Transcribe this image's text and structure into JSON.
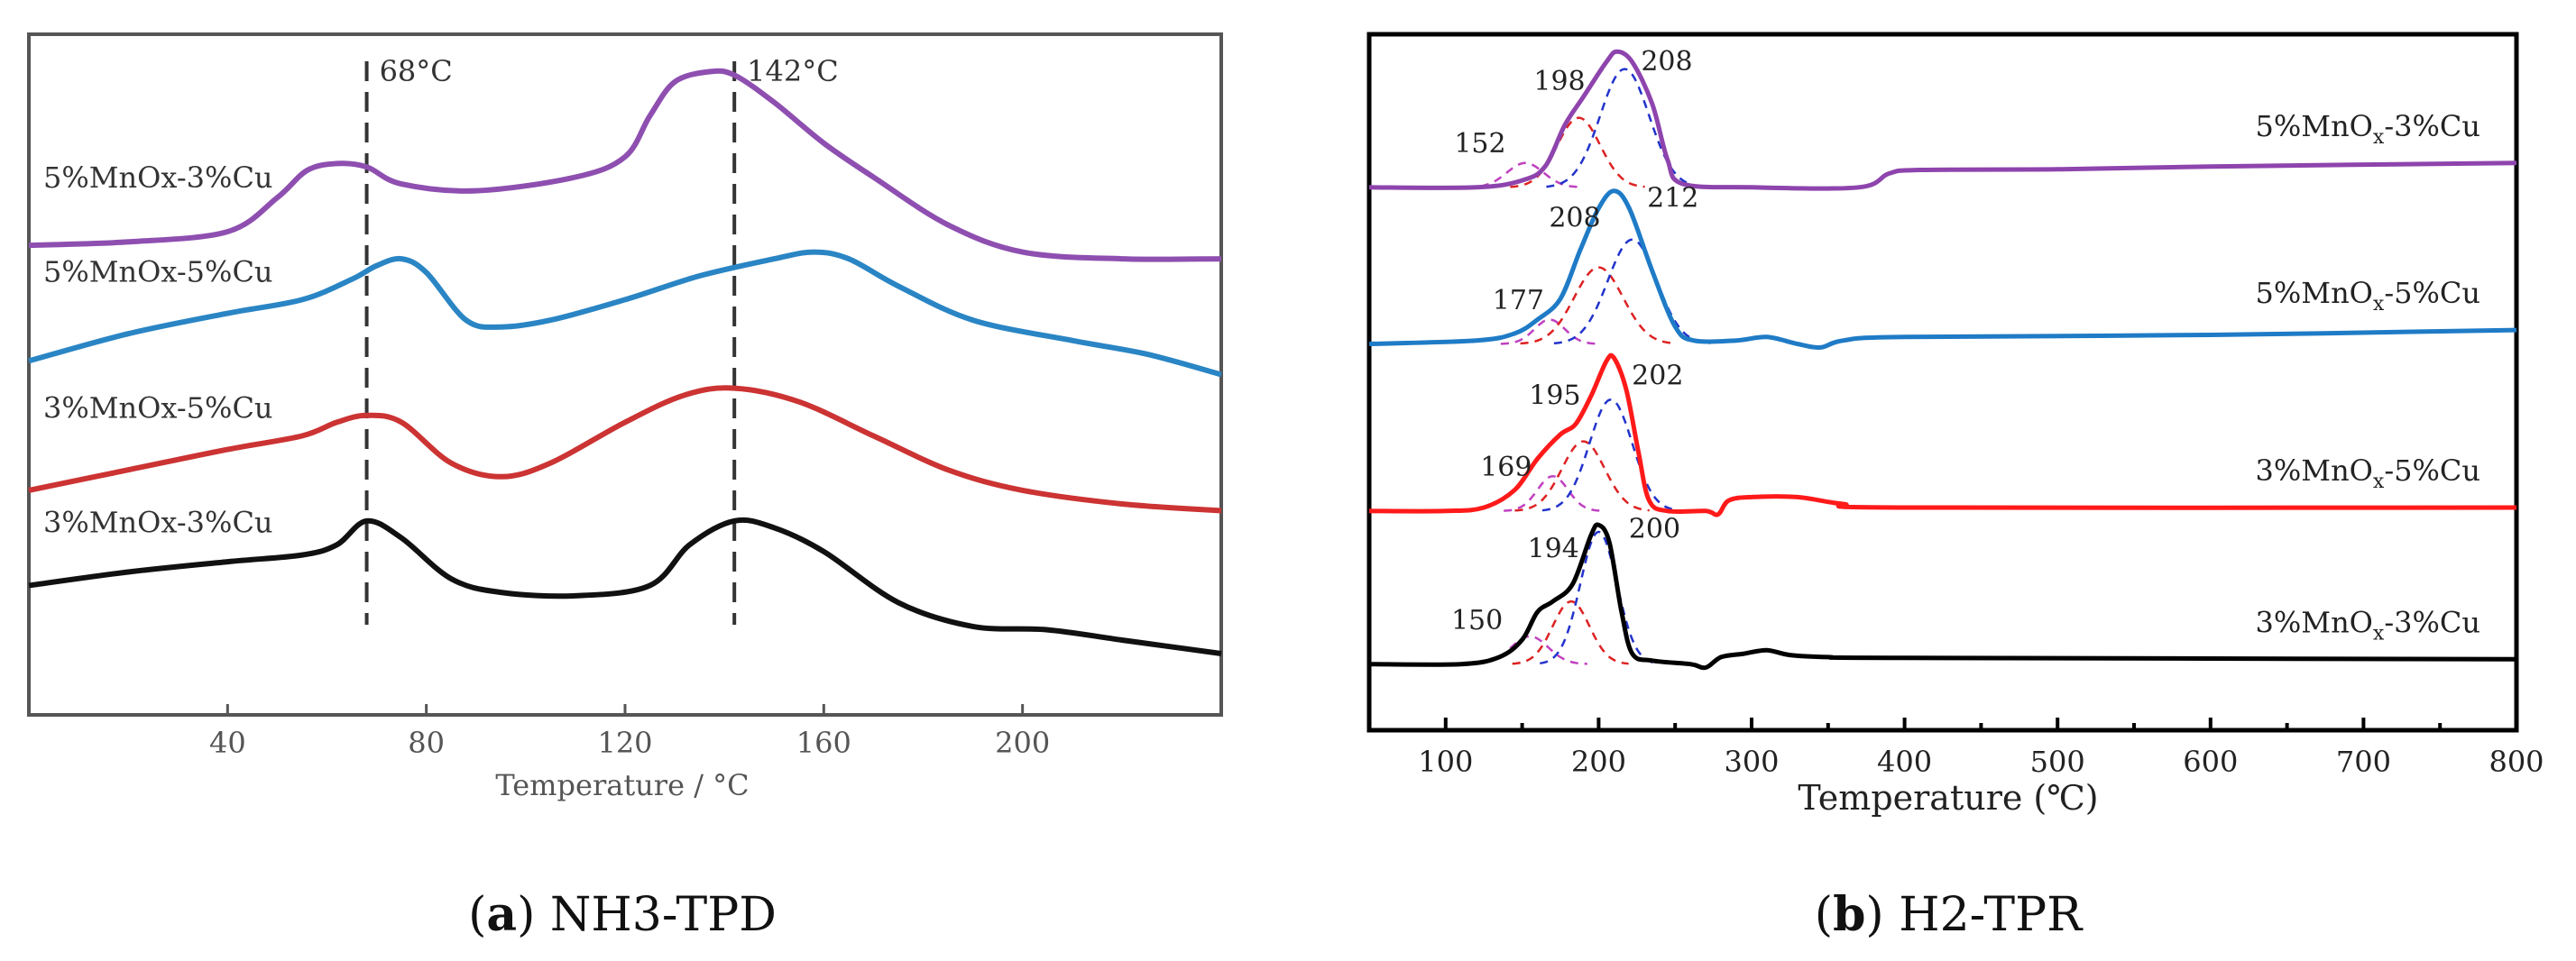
{
  "chart_data": [
    {
      "type": "line",
      "panel": "a",
      "caption_letter": "a",
      "caption_text": "NH3-TPD",
      "xlabel": "Temperature / °C",
      "ylabel": "",
      "xlim": [
        0,
        240
      ],
      "ylim": [
        0,
        100
      ],
      "x_ticks": [
        40,
        80,
        120,
        160,
        200
      ],
      "x_tick_labels": [
        "40",
        "80",
        "120",
        "160",
        "200"
      ],
      "reference_lines": [
        {
          "x": 68,
          "label": "68°C"
        },
        {
          "x": 142,
          "label": "142°C"
        }
      ],
      "series": [
        {
          "name": "5%MnOx-3%Cu",
          "color": "#8e4fb0",
          "points": [
            [
              0,
              69
            ],
            [
              20,
              69.5
            ],
            [
              40,
              71
            ],
            [
              50,
              76
            ],
            [
              56,
              80
            ],
            [
              62,
              81
            ],
            [
              68,
              80.5
            ],
            [
              75,
              78
            ],
            [
              90,
              77
            ],
            [
              110,
              79
            ],
            [
              120,
              82
            ],
            [
              125,
              88
            ],
            [
              130,
              93
            ],
            [
              137,
              94.5
            ],
            [
              142,
              94
            ],
            [
              150,
              90
            ],
            [
              160,
              84
            ],
            [
              170,
              79
            ],
            [
              185,
              72
            ],
            [
              200,
              68
            ],
            [
              220,
              67
            ],
            [
              240,
              67
            ]
          ]
        },
        {
          "name": "5%MnOx-5%Cu",
          "color": "#2a85c4",
          "points": [
            [
              0,
              52
            ],
            [
              20,
              56
            ],
            [
              40,
              59
            ],
            [
              55,
              61
            ],
            [
              65,
              64
            ],
            [
              70,
              66
            ],
            [
              75,
              67
            ],
            [
              80,
              65
            ],
            [
              88,
              58
            ],
            [
              95,
              57
            ],
            [
              105,
              58
            ],
            [
              120,
              61
            ],
            [
              135,
              64.5
            ],
            [
              150,
              67
            ],
            [
              158,
              68
            ],
            [
              165,
              67
            ],
            [
              175,
              63
            ],
            [
              190,
              58
            ],
            [
              210,
              55
            ],
            [
              225,
              53
            ],
            [
              240,
              50
            ]
          ]
        },
        {
          "name": "3%MnOx-5%Cu",
          "color": "#cc3333",
          "points": [
            [
              0,
              33
            ],
            [
              20,
              36
            ],
            [
              40,
              39
            ],
            [
              55,
              41
            ],
            [
              62,
              43
            ],
            [
              68,
              44
            ],
            [
              75,
              43
            ],
            [
              85,
              37
            ],
            [
              95,
              35
            ],
            [
              105,
              37
            ],
            [
              120,
              43
            ],
            [
              132,
              47
            ],
            [
              142,
              48
            ],
            [
              155,
              46
            ],
            [
              170,
              41
            ],
            [
              185,
              36
            ],
            [
              200,
              33
            ],
            [
              220,
              31
            ],
            [
              240,
              30
            ]
          ]
        },
        {
          "name": "3%MnOx-3%Cu",
          "color": "#111111",
          "points": [
            [
              0,
              19
            ],
            [
              20,
              21
            ],
            [
              40,
              22.5
            ],
            [
              55,
              23.5
            ],
            [
              62,
              25
            ],
            [
              68,
              28.5
            ],
            [
              75,
              26
            ],
            [
              85,
              20
            ],
            [
              95,
              18
            ],
            [
              110,
              17.5
            ],
            [
              125,
              19
            ],
            [
              133,
              25
            ],
            [
              142,
              28.5
            ],
            [
              150,
              27.5
            ],
            [
              160,
              24
            ],
            [
              175,
              16.5
            ],
            [
              190,
              13
            ],
            [
              205,
              12.5
            ],
            [
              220,
              11
            ],
            [
              240,
              9
            ]
          ]
        }
      ]
    },
    {
      "type": "line",
      "panel": "b",
      "caption_letter": "b",
      "caption_text": "H2-TPR",
      "xlabel": "Temperature (℃)",
      "ylabel": "",
      "xlim": [
        50,
        800
      ],
      "ylim": [
        0,
        100
      ],
      "x_ticks": [
        100,
        200,
        300,
        400,
        500,
        600,
        700,
        800
      ],
      "x_tick_labels": [
        "100",
        "200",
        "300",
        "400",
        "500",
        "600",
        "700",
        "800"
      ],
      "series": [
        {
          "name": "5%MnOx-3%Cu",
          "label_base": "5%MnO",
          "label_sub": "x",
          "label_tail": "-3%Cu",
          "color": "#8e44ad",
          "points": [
            [
              50,
              78
            ],
            [
              120,
              78
            ],
            [
              150,
              79
            ],
            [
              165,
              81
            ],
            [
              178,
              87
            ],
            [
              190,
              91
            ],
            [
              205,
              96
            ],
            [
              212,
              97.5
            ],
            [
              222,
              96
            ],
            [
              235,
              90
            ],
            [
              245,
              82
            ],
            [
              255,
              78.5
            ],
            [
              300,
              78
            ],
            [
              370,
              78
            ],
            [
              390,
              80
            ],
            [
              410,
              80.5
            ],
            [
              500,
              80.6
            ],
            [
              600,
              81
            ],
            [
              800,
              81.5
            ]
          ],
          "peaks": [
            152,
            198,
            208
          ],
          "components": [
            {
              "center": 152,
              "height": 3.5,
              "width": 12,
              "color": "#c040c0"
            },
            {
              "center": 187,
              "height": 10,
              "width": 14,
              "color": "#dd2222"
            },
            {
              "center": 217,
              "height": 17,
              "width": 16,
              "color": "#2233cc"
            }
          ]
        },
        {
          "name": "5%MnOx-5%Cu",
          "label_base": "5%MnO",
          "label_sub": "x",
          "label_tail": "-5%Cu",
          "color": "#1f7bc6",
          "points": [
            [
              50,
              55.5
            ],
            [
              120,
              56
            ],
            [
              145,
              57
            ],
            [
              160,
              59
            ],
            [
              175,
              62
            ],
            [
              188,
              69
            ],
            [
              200,
              75
            ],
            [
              210,
              77.5
            ],
            [
              220,
              75
            ],
            [
              235,
              66
            ],
            [
              250,
              58
            ],
            [
              262,
              56
            ],
            [
              290,
              56
            ],
            [
              310,
              56.5
            ],
            [
              330,
              55.5
            ],
            [
              345,
              55
            ],
            [
              360,
              56
            ],
            [
              400,
              56.5
            ],
            [
              600,
              56.8
            ],
            [
              800,
              57.5
            ]
          ],
          "peaks": [
            177,
            208,
            212
          ],
          "components": [
            {
              "center": 168,
              "height": 3.5,
              "width": 10,
              "color": "#c040c0"
            },
            {
              "center": 200,
              "height": 11,
              "width": 16,
              "color": "#dd2222"
            },
            {
              "center": 222,
              "height": 15,
              "width": 16,
              "color": "#2233cc"
            }
          ]
        },
        {
          "name": "3%MnOx-5%Cu",
          "label_base": "3%MnO",
          "label_sub": "x",
          "label_tail": "-5%Cu",
          "color": "#ff1a1a",
          "points": [
            [
              50,
              31.5
            ],
            [
              100,
              31.5
            ],
            [
              125,
              32
            ],
            [
              145,
              34.5
            ],
            [
              160,
              39
            ],
            [
              175,
              42.5
            ],
            [
              185,
              44
            ],
            [
              195,
              48
            ],
            [
              205,
              53
            ],
            [
              210,
              53.5
            ],
            [
              218,
              49
            ],
            [
              226,
              40
            ],
            [
              233,
              33
            ],
            [
              245,
              31.5
            ],
            [
              270,
              31.5
            ],
            [
              278,
              31
            ],
            [
              285,
              33
            ],
            [
              300,
              33.5
            ],
            [
              330,
              33.5
            ],
            [
              360,
              32.5
            ],
            [
              400,
              32
            ],
            [
              800,
              32
            ]
          ],
          "peaks": [
            169,
            195,
            202
          ],
          "components": [
            {
              "center": 170,
              "height": 5,
              "width": 10,
              "color": "#c040c0"
            },
            {
              "center": 190,
              "height": 10,
              "width": 14,
              "color": "#dd2222"
            },
            {
              "center": 208,
              "height": 16,
              "width": 14,
              "color": "#2233cc"
            }
          ]
        },
        {
          "name": "3%MnOx-3%Cu",
          "label_base": "3%MnO",
          "label_sub": "x",
          "label_tail": "-3%Cu",
          "color": "#000000",
          "points": [
            [
              50,
              9.5
            ],
            [
              110,
              9.5
            ],
            [
              135,
              10.5
            ],
            [
              150,
              13
            ],
            [
              160,
              17
            ],
            [
              170,
              18.5
            ],
            [
              183,
              21
            ],
            [
              195,
              28
            ],
            [
              200,
              29.5
            ],
            [
              207,
              27
            ],
            [
              215,
              17
            ],
            [
              222,
              11
            ],
            [
              235,
              10
            ],
            [
              260,
              9.5
            ],
            [
              270,
              9
            ],
            [
              280,
              10.5
            ],
            [
              295,
              11
            ],
            [
              310,
              11.5
            ],
            [
              325,
              10.8
            ],
            [
              350,
              10.5
            ],
            [
              400,
              10.4
            ],
            [
              800,
              10.2
            ]
          ],
          "peaks": [
            150,
            194,
            200
          ],
          "components": [
            {
              "center": 155,
              "height": 4,
              "width": 12,
              "color": "#c040c0"
            },
            {
              "center": 182,
              "height": 9,
              "width": 12,
              "color": "#dd2222"
            },
            {
              "center": 200,
              "height": 19,
              "width": 12,
              "color": "#2233cc"
            }
          ]
        }
      ]
    }
  ]
}
